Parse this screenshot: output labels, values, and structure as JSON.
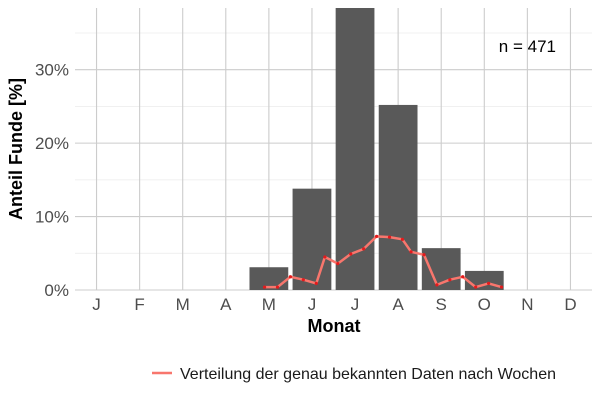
{
  "chart_data": {
    "type": "bar",
    "xlabel": "Monat",
    "ylabel": "Anteil Funde [%]",
    "categories": [
      "J",
      "F",
      "M",
      "A",
      "M",
      "J",
      "J",
      "A",
      "S",
      "O",
      "N",
      "D"
    ],
    "values": [
      0,
      0,
      0,
      0,
      3.1,
      13.8,
      38.4,
      25.2,
      5.7,
      2.6,
      0,
      0
    ],
    "y_ticks": [
      "0%",
      "10%",
      "20%",
      "30%"
    ],
    "y_tick_values": [
      0,
      10,
      20,
      30
    ],
    "ylim": [
      0,
      38.4
    ],
    "grid": true,
    "bar_color": "#595959",
    "annotation": "n = 471",
    "line_series": {
      "name": "Verteilung der genau bekannten Daten nach Wochen",
      "color": "#f8766d",
      "point_color": "#e41a1c",
      "x_month": [
        4.9,
        5.2,
        5.5,
        5.8,
        6.1,
        6.3,
        6.6,
        6.9,
        7.2,
        7.5,
        7.8,
        8.1,
        8.3,
        8.6,
        8.9,
        9.2,
        9.5,
        9.8,
        10.1,
        10.4
      ],
      "values": [
        0.4,
        0.4,
        1.8,
        1.4,
        0.9,
        4.5,
        3.6,
        4.9,
        5.6,
        7.3,
        7.2,
        6.9,
        5.2,
        4.8,
        0.7,
        1.4,
        1.8,
        0.4,
        0.9,
        0.4
      ]
    },
    "legend_position": "bottom"
  }
}
